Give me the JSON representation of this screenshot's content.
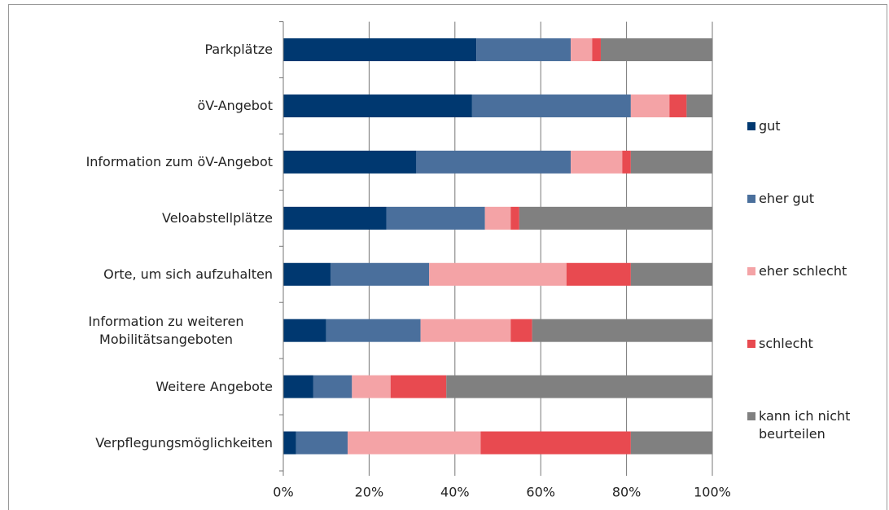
{
  "chart_data": {
    "type": "stacked_barh",
    "categories": [
      "Parkplätze",
      "öV-Angebot",
      "Information zum öV-Angebot",
      "Veloabstellplätze",
      "Orte, um sich aufzuhalten",
      "Information zu weiteren Mobilitätsangeboten",
      "Weitere Angebote",
      "Verpflegungsmöglichkeiten"
    ],
    "series": [
      {
        "name": "gut",
        "color": "#003870",
        "values": [
          45,
          44,
          31,
          24,
          11,
          10,
          7,
          3
        ]
      },
      {
        "name": "eher gut",
        "color": "#4a6f9c",
        "values": [
          22,
          37,
          36,
          23,
          23,
          22,
          9,
          12
        ]
      },
      {
        "name": "eher schlecht",
        "color": "#f4a3a6",
        "values": [
          5,
          9,
          12,
          6,
          32,
          21,
          9,
          31
        ]
      },
      {
        "name": "schlecht",
        "color": "#e84a50",
        "values": [
          2,
          4,
          2,
          2,
          15,
          5,
          13,
          35
        ]
      },
      {
        "name": "kann ich nicht beurteilen",
        "color": "#808080",
        "values": [
          26,
          6,
          19,
          45,
          19,
          42,
          62,
          19
        ]
      }
    ],
    "xlim": [
      0,
      100
    ],
    "xticks": [
      {
        "value": 0,
        "label": "0%"
      },
      {
        "value": 20,
        "label": "20%"
      },
      {
        "value": 40,
        "label": "40%"
      },
      {
        "value": 60,
        "label": "60%"
      },
      {
        "value": 80,
        "label": "80%"
      },
      {
        "value": 100,
        "label": "100%"
      }
    ],
    "grid": true,
    "legend": "right"
  }
}
